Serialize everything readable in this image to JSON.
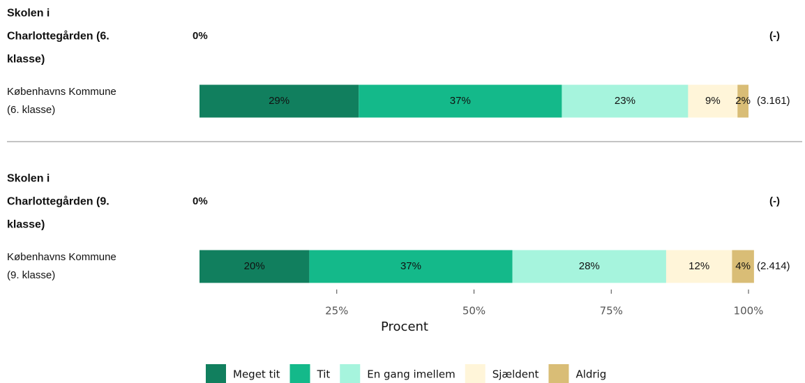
{
  "chart_data": {
    "type": "bar",
    "categories": [
      "Skolen i Charlottegården (6. klasse)",
      "Københavns Kommune (6. klasse)",
      "Skolen i Charlottegården (9. klasse)",
      "Københavns Kommune (9. klasse)"
    ],
    "row_value_labels": [
      "0%",
      null,
      "0%",
      null
    ],
    "count_labels": [
      "(-)",
      "(3.161)",
      "(-)",
      "(2.414)"
    ],
    "series": [
      {
        "name": "Meget tit",
        "color": "#117f5e",
        "values": [
          null,
          29,
          null,
          20
        ],
        "value_labels": [
          null,
          "29%",
          null,
          "20%"
        ]
      },
      {
        "name": "Tit",
        "color": "#14b98a",
        "values": [
          null,
          37,
          null,
          37
        ],
        "value_labels": [
          null,
          "37%",
          null,
          "37%"
        ]
      },
      {
        "name": "En gang imellem",
        "color": "#a6f4dd",
        "values": [
          null,
          23,
          null,
          28
        ],
        "value_labels": [
          null,
          "23%",
          null,
          "28%"
        ]
      },
      {
        "name": "Sjældent",
        "color": "#fff5d9",
        "values": [
          null,
          9,
          null,
          12
        ],
        "value_labels": [
          null,
          "9%",
          null,
          "12%"
        ]
      },
      {
        "name": "Aldrig",
        "color": "#d9bd76",
        "values": [
          null,
          2,
          null,
          4
        ],
        "value_labels": [
          null,
          "2%",
          null,
          "4%"
        ]
      }
    ],
    "xlim": [
      0,
      100
    ],
    "xticks": [
      {
        "value": 25,
        "label": "25%"
      },
      {
        "value": 50,
        "label": "50%"
      },
      {
        "value": 75,
        "label": "75%"
      },
      {
        "value": 100,
        "label": "100%"
      }
    ],
    "xlabel": "Procent",
    "legend": "bottom"
  }
}
